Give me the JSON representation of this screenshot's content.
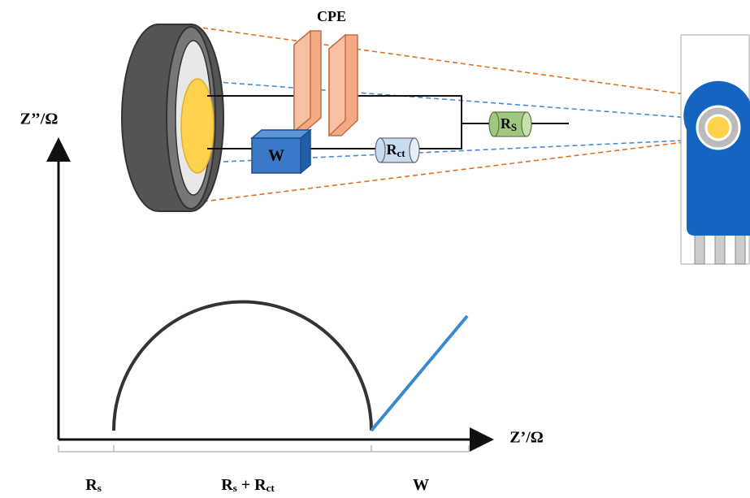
{
  "circuit": {
    "cpe": "CPE",
    "warburg": "W",
    "rct": [
      "R",
      "ct"
    ],
    "rs": [
      "R",
      "S"
    ]
  },
  "plot": {
    "y_axis": "Z’’/Ω",
    "x_axis": "Z’/Ω",
    "segments": [
      [
        "R",
        "s"
      ],
      [
        "R",
        "s",
        " + R",
        "ct"
      ],
      [
        "W"
      ]
    ]
  }
}
